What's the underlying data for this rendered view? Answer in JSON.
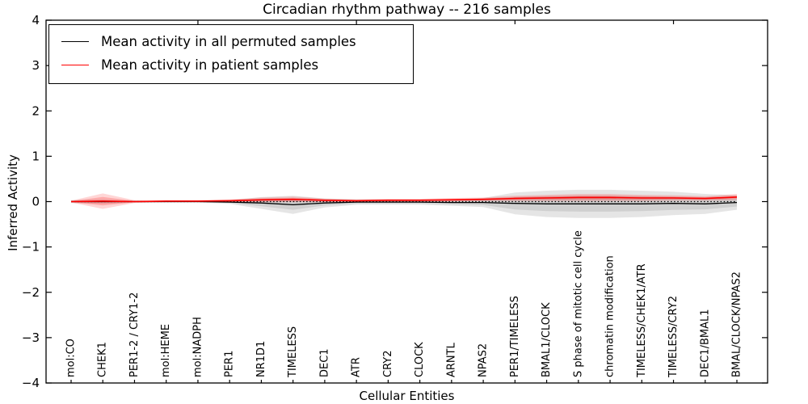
{
  "title": "Circadian rhythm pathway -- 216 samples",
  "chart_data": {
    "type": "line",
    "title": "Circadian rhythm pathway -- 216 samples",
    "xlabel": "Cellular Entities",
    "ylabel": "Inferred Activity",
    "ylim": [
      -4,
      4
    ],
    "ytick_labels": [
      "4",
      "3",
      "2",
      "1",
      "0",
      "−1",
      "−2",
      "−3",
      "−4"
    ],
    "ytick_values": [
      4,
      3,
      2,
      1,
      0,
      -1,
      -2,
      -3,
      -4
    ],
    "grid": false,
    "legend_position": "upper left",
    "zero_line": {
      "style": "dotted",
      "color": "#000000",
      "y": 0
    },
    "categories": [
      "mol:CO",
      "CHEK1",
      "PER1-2 / CRY1-2",
      "mol:HEME",
      "mol:NADPH",
      "PER1",
      "NR1D1",
      "TIMELESS",
      "DEC1",
      "ATR",
      "CRY2",
      "CLOCK",
      "ARNTL",
      "NPAS2",
      "PER1/TIMELESS",
      "BMAL1/CLOCK",
      "S phase of mitotic cell cycle",
      "chromatin modification",
      "TIMELESS/CHEK1/ATR",
      "TIMELESS/CRY2",
      "DEC1/BMAL1",
      "BMAL/CLOCK/NPAS2"
    ],
    "series": [
      {
        "name": "Mean activity in all permuted samples",
        "color": "#000000",
        "values": [
          0.0,
          0.0,
          0.0,
          0.0,
          0.0,
          -0.01,
          -0.03,
          -0.07,
          -0.03,
          -0.01,
          -0.01,
          -0.01,
          -0.02,
          -0.02,
          -0.04,
          -0.05,
          -0.05,
          -0.05,
          -0.05,
          -0.04,
          -0.05,
          -0.02
        ],
        "band_halfwidth": [
          0.03,
          0.05,
          0.02,
          0.02,
          0.02,
          0.04,
          0.13,
          0.2,
          0.1,
          0.06,
          0.06,
          0.06,
          0.07,
          0.1,
          0.24,
          0.29,
          0.31,
          0.31,
          0.29,
          0.26,
          0.22,
          0.16
        ],
        "band_color": "#000000"
      },
      {
        "name": "Mean activity in patient samples",
        "color": "#ff0000",
        "values": [
          0.0,
          0.01,
          0.0,
          0.01,
          0.01,
          0.02,
          0.04,
          0.05,
          0.03,
          0.02,
          0.03,
          0.03,
          0.04,
          0.05,
          0.07,
          0.08,
          0.09,
          0.09,
          0.08,
          0.08,
          0.07,
          0.1
        ],
        "band_halfwidth": [
          0.02,
          0.17,
          0.03,
          0.02,
          0.02,
          0.03,
          0.05,
          0.06,
          0.04,
          0.03,
          0.03,
          0.03,
          0.04,
          0.04,
          0.06,
          0.07,
          0.08,
          0.08,
          0.07,
          0.06,
          0.05,
          0.07
        ],
        "band_color": "#ff0000"
      }
    ]
  }
}
